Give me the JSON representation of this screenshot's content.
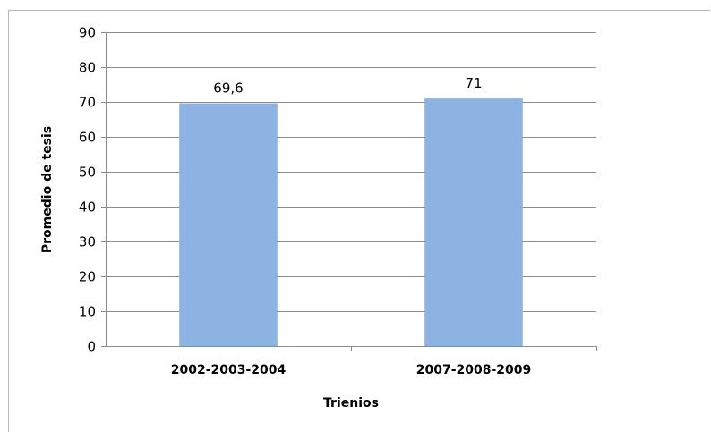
{
  "chart_data": {
    "type": "bar",
    "title": "",
    "categories": [
      "2002-2003-2004",
      "2007-2008-2009"
    ],
    "values": [
      69.6,
      71
    ],
    "data_labels": [
      "69,6",
      "71"
    ],
    "xlabel": "Trienios",
    "ylabel": "Promedio de tesis",
    "ylim": [
      0,
      90
    ],
    "yticks": [
      "0",
      "10",
      "20",
      "30",
      "40",
      "50",
      "60",
      "70",
      "80",
      "90"
    ],
    "grid": true,
    "legend": "none",
    "bar_color": "#8db3e2",
    "grid_color": "#8c8c8c"
  }
}
